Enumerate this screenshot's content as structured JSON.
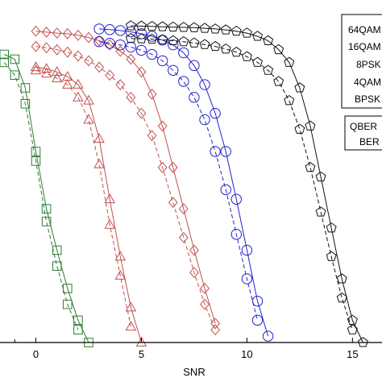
{
  "chart_data": {
    "type": "line",
    "xlabel": "SNR",
    "ylabel": "",
    "title": "",
    "xlim": [
      -1.7,
      16.4
    ],
    "ylim": [
      0,
      1
    ],
    "xticks": [
      0,
      5,
      10,
      15
    ],
    "grid": false,
    "legend_mod": {
      "placement": "top-right",
      "entries": [
        "64QAM",
        "16QAM",
        "8PSK",
        "4QAM",
        "BPSK"
      ]
    },
    "legend_style": {
      "placement": "right",
      "entries": [
        "QBER",
        "BER"
      ]
    },
    "series": [
      {
        "color": "#2e7d32",
        "marker": "square",
        "solid": {
          "x": [
            -1.5,
            -1.0,
            -0.5,
            0.0,
            0.5,
            1.0,
            1.5,
            2.0,
            2.5
          ],
          "y": [
            0.905,
            0.89,
            0.8,
            0.6,
            0.42,
            0.29,
            0.17,
            0.07,
            0.0
          ]
        },
        "dashed": {
          "x": [
            -1.5,
            -1.0,
            -0.5,
            0.0,
            0.5,
            1.0,
            1.5,
            2.0
          ],
          "y": [
            0.88,
            0.84,
            0.75,
            0.57,
            0.38,
            0.24,
            0.12,
            0.04
          ]
        }
      },
      {
        "color": "#c0504d",
        "marker": "triangle",
        "solid": {
          "x": [
            0.0,
            0.5,
            1.0,
            1.5,
            2.0,
            2.5,
            3.0,
            3.5,
            4.0,
            4.5,
            5.0
          ],
          "y": [
            0.865,
            0.86,
            0.85,
            0.835,
            0.81,
            0.76,
            0.64,
            0.45,
            0.27,
            0.11,
            0.0
          ]
        },
        "dashed": {
          "x": [
            0.0,
            0.5,
            1.0,
            1.5,
            2.0,
            2.5,
            3.0,
            3.5,
            4.0,
            4.5
          ],
          "y": [
            0.855,
            0.845,
            0.83,
            0.81,
            0.77,
            0.7,
            0.56,
            0.37,
            0.21,
            0.05
          ]
        }
      },
      {
        "color": "#c0504d",
        "marker": "diamond",
        "solid": {
          "x": [
            0.0,
            0.5,
            1.0,
            1.5,
            2.0,
            2.5,
            3.0,
            3.5,
            4.0,
            4.5,
            5.0,
            5.5,
            6.0,
            6.5,
            7.0,
            7.5,
            8.0,
            8.5
          ],
          "y": [
            0.978,
            0.975,
            0.972,
            0.97,
            0.965,
            0.958,
            0.948,
            0.935,
            0.915,
            0.89,
            0.85,
            0.78,
            0.68,
            0.55,
            0.42,
            0.29,
            0.17,
            0.06
          ]
        },
        "dashed": {
          "x": [
            0.0,
            0.5,
            1.0,
            1.5,
            2.0,
            2.5,
            3.0,
            3.5,
            4.0,
            4.5,
            5.0,
            5.5,
            6.0,
            6.5,
            7.0,
            7.5,
            8.0,
            8.5
          ],
          "y": [
            0.93,
            0.926,
            0.92,
            0.912,
            0.9,
            0.885,
            0.865,
            0.84,
            0.81,
            0.77,
            0.72,
            0.65,
            0.55,
            0.44,
            0.33,
            0.22,
            0.12,
            0.04
          ]
        }
      },
      {
        "color": "#2222cc",
        "marker": "circle",
        "solid": {
          "x": [
            3.0,
            3.5,
            4.0,
            4.5,
            5.0,
            5.5,
            6.0,
            6.5,
            7.0,
            7.5,
            8.0,
            8.5,
            9.0,
            9.5,
            10.0,
            10.5,
            11.0
          ],
          "y": [
            0.985,
            0.983,
            0.98,
            0.976,
            0.97,
            0.962,
            0.95,
            0.935,
            0.91,
            0.87,
            0.81,
            0.72,
            0.6,
            0.45,
            0.29,
            0.13,
            0.02
          ]
        },
        "dashed": {
          "x": [
            3.0,
            3.5,
            4.0,
            4.5,
            5.0,
            5.5,
            6.0,
            6.5,
            7.0,
            7.5,
            8.0,
            8.5,
            9.0,
            9.5,
            10.0,
            10.5
          ],
          "y": [
            0.945,
            0.94,
            0.935,
            0.928,
            0.918,
            0.905,
            0.885,
            0.855,
            0.82,
            0.77,
            0.7,
            0.6,
            0.48,
            0.34,
            0.2,
            0.07
          ]
        }
      },
      {
        "color": "#111111",
        "marker": "pentagon",
        "solid": {
          "x": [
            4.5,
            5.0,
            5.5,
            6.0,
            6.5,
            7.0,
            7.5,
            8.0,
            8.5,
            9.0,
            9.5,
            10.0,
            10.5,
            11.0,
            11.5,
            12.0,
            12.5,
            13.0,
            13.5,
            14.0,
            14.5,
            15.0,
            15.5
          ],
          "y": [
            0.995,
            0.994,
            0.993,
            0.992,
            0.991,
            0.99,
            0.989,
            0.987,
            0.985,
            0.982,
            0.978,
            0.972,
            0.962,
            0.948,
            0.92,
            0.88,
            0.8,
            0.68,
            0.52,
            0.36,
            0.2,
            0.07,
            0.0
          ]
        },
        "dashed": {
          "x": [
            4.5,
            5.0,
            5.5,
            6.0,
            6.5,
            7.0,
            7.5,
            8.0,
            8.5,
            9.0,
            9.5,
            10.0,
            10.5,
            11.0,
            11.5,
            12.0,
            12.5,
            13.0,
            13.5,
            14.0,
            14.5,
            15.0
          ],
          "y": [
            0.955,
            0.954,
            0.953,
            0.951,
            0.948,
            0.945,
            0.941,
            0.936,
            0.93,
            0.922,
            0.912,
            0.898,
            0.88,
            0.855,
            0.82,
            0.76,
            0.67,
            0.55,
            0.41,
            0.27,
            0.14,
            0.04
          ]
        }
      }
    ]
  }
}
